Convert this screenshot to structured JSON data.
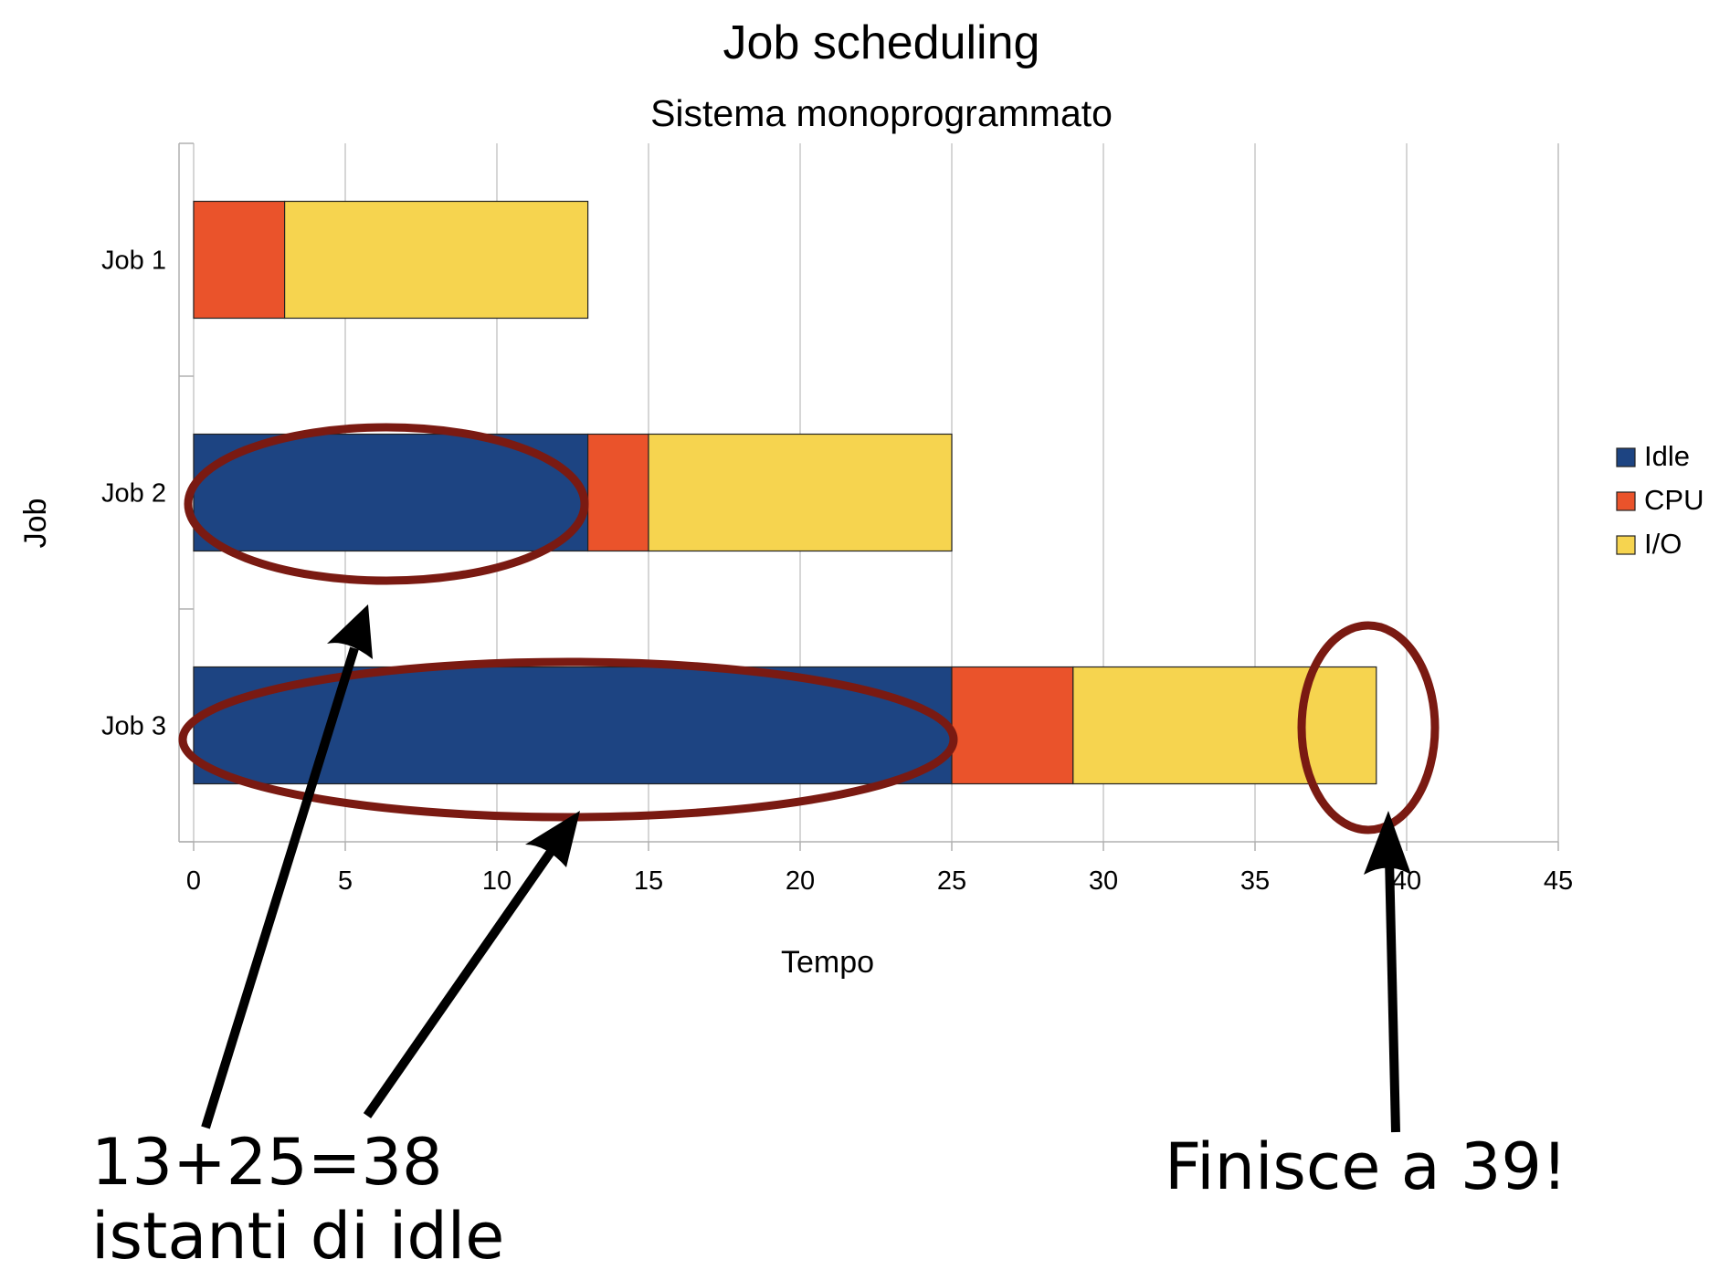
{
  "chart_data": {
    "type": "bar",
    "orientation": "horizontal",
    "stacked": true,
    "title": "Job scheduling",
    "subtitle": "Sistema monoprogrammato",
    "xlabel": "Tempo",
    "ylabel": "Job",
    "categories": [
      "Job 1",
      "Job 2",
      "Job 3"
    ],
    "series": [
      {
        "name": "Idle",
        "color": "#1d4482",
        "values": [
          0,
          13,
          25
        ]
      },
      {
        "name": "CPU",
        "color": "#ea532b",
        "values": [
          3,
          2,
          4
        ]
      },
      {
        "name": "I/O",
        "color": "#f6d44f",
        "values": [
          10,
          10,
          10
        ]
      }
    ],
    "xlim": [
      0,
      45
    ],
    "xticks": [
      "0",
      "5",
      "10",
      "15",
      "20",
      "25",
      "30",
      "35",
      "40",
      "45"
    ],
    "grid": true,
    "legend_position": "right"
  },
  "annotations": {
    "idle_note_line1": "13+25=38",
    "idle_note_line2": "istanti di idle",
    "finish_note": "Finisce a 39!",
    "highlight_color": "#7a1a12"
  }
}
